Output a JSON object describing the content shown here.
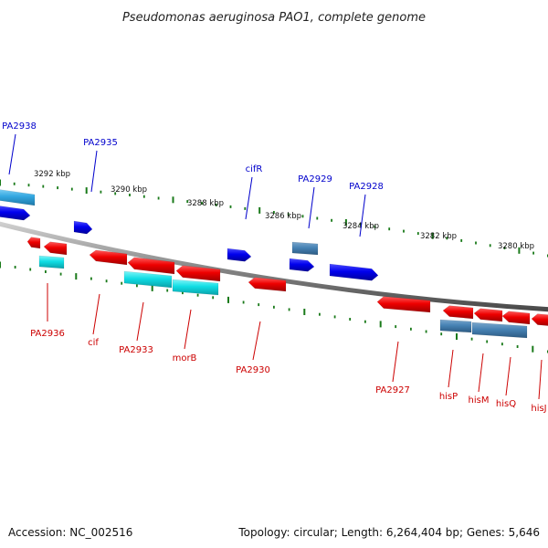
{
  "header": {
    "title": "Pseudomonas aeruginosa PAO1, complete genome"
  },
  "footer": {
    "accession": "Accession: NC_002516",
    "stats": "Topology: circular; Length: 6,264,404 bp; Genes: 5,646"
  },
  "colors": {
    "backbone": "#808080",
    "forward_label": "#0000cc",
    "reverse_label": "#cc0000",
    "tick": "#1a7a1a",
    "red_feature": "#e60000",
    "blue_feature": "#0000e6",
    "cyan_feature": "#19e0e6",
    "steel_feature": "#4682b4",
    "skyblue_feature": "#33a7e0"
  },
  "ruler": {
    "labels": [
      "3292 kbp",
      "3290 kbp",
      "3288 kbp",
      "3286 kbp",
      "3284 kbp",
      "3282 kbp",
      "3280 kbp"
    ]
  },
  "genes": {
    "forward": [
      "PA2938",
      "PA2935",
      "cifR",
      "PA2929",
      "PA2928"
    ],
    "reverse": [
      "PA2936",
      "cif",
      "PA2933",
      "morB",
      "PA2930",
      "PA2927",
      "hisP",
      "hisM",
      "hisQ",
      "hisJ"
    ]
  }
}
